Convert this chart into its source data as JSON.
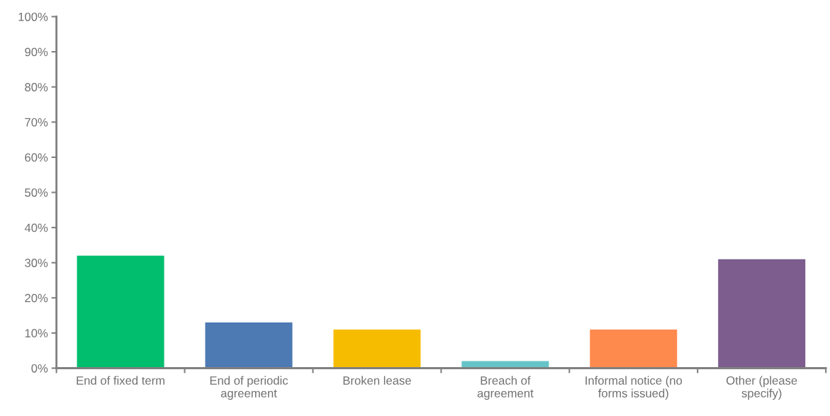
{
  "chart_data": {
    "type": "bar",
    "categories": [
      "End of fixed term",
      "End of periodic\nagreement",
      "Broken lease",
      "Breach of\nagreement",
      "Informal notice (no\nforms issued)",
      "Other (please\nspecify)"
    ],
    "values": [
      32,
      13,
      11,
      2,
      11,
      31
    ],
    "colors": [
      "#00be6e",
      "#4e7ab3",
      "#f6bd00",
      "#65c4c8",
      "#ff8a4e",
      "#7c5d8e"
    ],
    "ylim": [
      0,
      100
    ],
    "yticks": [
      {
        "value": 0,
        "label": "0%"
      },
      {
        "value": 10,
        "label": "10%"
      },
      {
        "value": 20,
        "label": "20%"
      },
      {
        "value": 30,
        "label": "30%"
      },
      {
        "value": 40,
        "label": "40%"
      },
      {
        "value": 50,
        "label": "50%"
      },
      {
        "value": 60,
        "label": "60%"
      },
      {
        "value": 70,
        "label": "70%"
      },
      {
        "value": 80,
        "label": "80%"
      },
      {
        "value": 90,
        "label": "90%"
      },
      {
        "value": 100,
        "label": "100%"
      }
    ],
    "grid": false
  }
}
